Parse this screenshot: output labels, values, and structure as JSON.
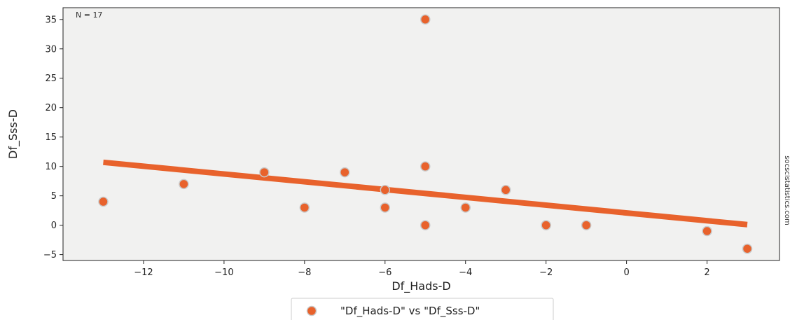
{
  "chart_data": {
    "type": "scatter",
    "xlabel": "Df_Hads-D",
    "ylabel": "Df_Sss-D",
    "xlim": [
      -14,
      3.8
    ],
    "ylim": [
      -6,
      37
    ],
    "x_ticks": [
      -12,
      -10,
      -8,
      -6,
      -4,
      -2,
      0,
      2
    ],
    "y_ticks": [
      -5,
      0,
      5,
      10,
      15,
      20,
      25,
      30,
      35
    ],
    "grid": false,
    "legend_position": "bottom-center",
    "annotation": "N = 17",
    "watermark": "socscistatistics.com",
    "series": [
      {
        "name": "\"Df_Hads-D\" vs \"Df_Sss-D\"",
        "color": "#e8622c",
        "points": [
          {
            "x": -13,
            "y": 4
          },
          {
            "x": -11,
            "y": 7
          },
          {
            "x": -9,
            "y": 9
          },
          {
            "x": -8,
            "y": 3
          },
          {
            "x": -7,
            "y": 9
          },
          {
            "x": -6,
            "y": 6
          },
          {
            "x": -6,
            "y": 3
          },
          {
            "x": -5,
            "y": 35
          },
          {
            "x": -5,
            "y": 10
          },
          {
            "x": -5,
            "y": 0
          },
          {
            "x": -4,
            "y": 3
          },
          {
            "x": -3,
            "y": 6
          },
          {
            "x": -2,
            "y": 0
          },
          {
            "x": -2,
            "y": 0
          },
          {
            "x": -1,
            "y": 0
          },
          {
            "x": 2,
            "y": -1
          },
          {
            "x": 3,
            "y": -4
          }
        ]
      }
    ],
    "trendline": {
      "color": "#e8622c",
      "from": {
        "x": -13,
        "y": 10.7
      },
      "to": {
        "x": 3,
        "y": 0.1
      }
    },
    "colors": {
      "plot_background": "#f1f1f0",
      "marker_edge": "#c9c9c9"
    }
  }
}
